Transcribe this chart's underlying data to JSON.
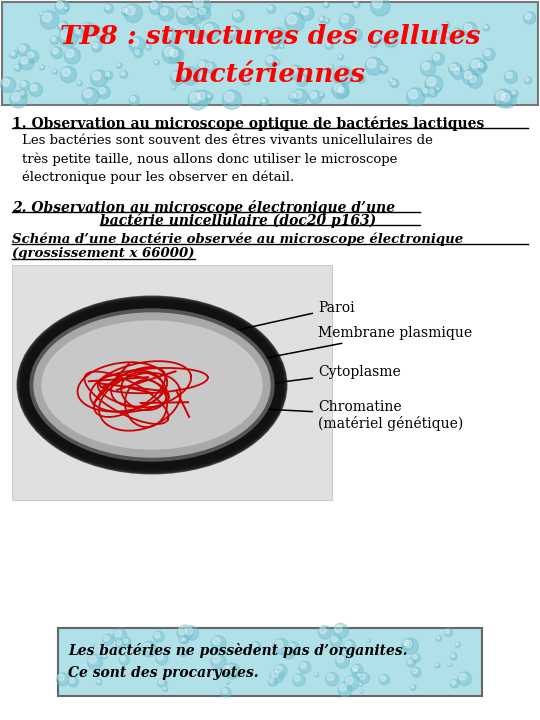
{
  "title_line1": "TP8 : structures des cellules",
  "title_line2": "bactériennes",
  "title_color": "#ff0000",
  "header_bg": "#b0e0e8",
  "section1_title": "1. Observation au microscope optique de bactéries lactiques",
  "section1_para": "Les bactéries sont souvent des êtres vivants unicellulaires de\ntrès petite taille, nous allons donc utiliser le microscope\nélectronique pour les observer en détail.",
  "section2_title_line1": "2. Observation au microscope électronique d’une",
  "section2_title_line2": "bactérie unicellulaire (doc20 p163)",
  "schema_title": "Schéma d’une bactérie observée au microscope électronique",
  "schema_subtitle": "(grossissement x 66000)",
  "label_paroi": "Paroi",
  "label_membrane": "Membrane plasmique",
  "label_cytoplasme": "Cytoplasme",
  "label_chromatine": "Chromatine\n(matériel génétique)",
  "box_text_line1": "Les bactéries ne possèdent pas d’organites.",
  "box_text_line2": "Ce sont des procaryotes.",
  "bg_color": "#ffffff",
  "text_color": "#000000"
}
